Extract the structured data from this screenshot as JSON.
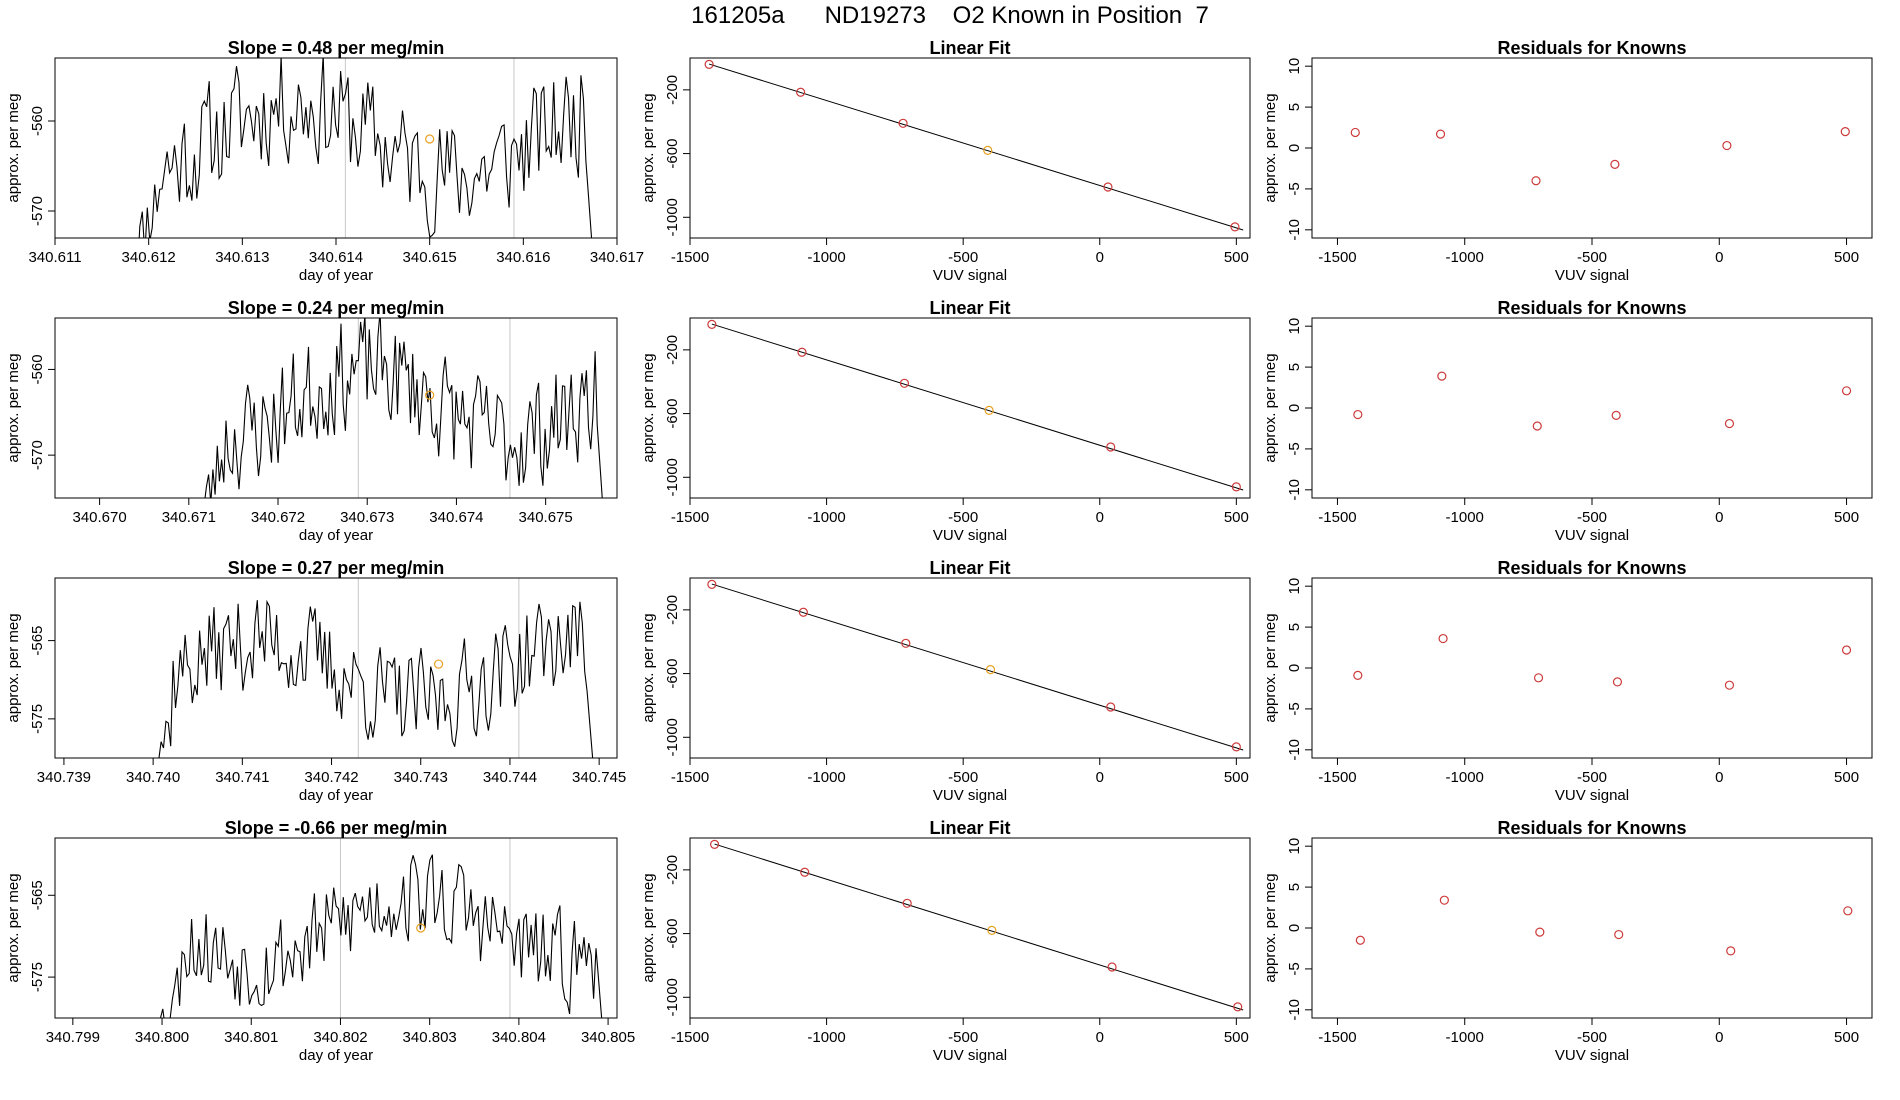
{
  "figure_title": "161205a      ND19273    O2 Known in Position  7",
  "colors": {
    "trace": "#000000",
    "marker_red": "#cd3a3a",
    "marker_orange": "#e8a020",
    "window_line": "#c8c8c8",
    "frame": "#000000"
  },
  "chart_data": [
    {
      "type": "line",
      "title": "Slope =  0.48  per meg/min",
      "xlabel": "day of year",
      "ylabel": "approx. per meg",
      "xlim": [
        340.611,
        340.617
      ],
      "ylim": [
        -573,
        -553
      ],
      "xticks": [
        "340.611",
        "340.612",
        "340.613",
        "340.614",
        "340.615",
        "340.616",
        "340.617"
      ],
      "yticks": [
        "-560",
        "-570"
      ],
      "ytick_values": [
        -560,
        -570
      ],
      "window_lines": [
        340.6141,
        340.6159
      ],
      "marker": {
        "x": 340.615,
        "y": -562
      },
      "series": [
        {
          "start_x": 340.6118,
          "end_x": 340.6168,
          "mean": -562,
          "amp": 6,
          "seed": 11
        }
      ]
    },
    {
      "type": "scatter",
      "title": "Linear Fit",
      "xlabel": "VUV signal",
      "ylabel": "approx. per meg",
      "xlim": [
        -1500,
        550
      ],
      "ylim": [
        -1130,
        0
      ],
      "xticks": [
        "-1500",
        "-1000",
        "-500",
        "0",
        "500"
      ],
      "xtick_values": [
        -1500,
        -1000,
        -500,
        0,
        500
      ],
      "yticks": [
        "-200",
        "-600",
        "-1000"
      ],
      "ytick_values": [
        -200,
        -600,
        -1000
      ],
      "points": [
        {
          "x": -1430,
          "y": -40,
          "c": "red"
        },
        {
          "x": -1095,
          "y": -215,
          "c": "red"
        },
        {
          "x": -720,
          "y": -410,
          "c": "red"
        },
        {
          "x": -410,
          "y": -580,
          "c": "orange"
        },
        {
          "x": 30,
          "y": -810,
          "c": "red"
        },
        {
          "x": 495,
          "y": -1060,
          "c": "red"
        }
      ],
      "fit": {
        "x": [
          -1430,
          525
        ],
        "y": [
          -38,
          -1080
        ]
      }
    },
    {
      "type": "scatter",
      "title": "Residuals for Knowns",
      "xlabel": "VUV signal",
      "ylabel": "approx. per meg",
      "xlim": [
        -1600,
        600
      ],
      "ylim": [
        -11,
        11
      ],
      "xticks": [
        "-1500",
        "-1000",
        "-500",
        "0",
        "500"
      ],
      "xtick_values": [
        -1500,
        -1000,
        -500,
        0,
        500
      ],
      "yticks": [
        "10",
        "5",
        "0",
        "-5",
        "-10"
      ],
      "ytick_values": [
        10,
        5,
        0,
        -5,
        -10
      ],
      "points": [
        {
          "x": -1430,
          "y": 1.9,
          "c": "red"
        },
        {
          "x": -1095,
          "y": 1.7,
          "c": "red"
        },
        {
          "x": -720,
          "y": -4.0,
          "c": "red"
        },
        {
          "x": -410,
          "y": -2.0,
          "c": "red"
        },
        {
          "x": 30,
          "y": 0.3,
          "c": "red"
        },
        {
          "x": 495,
          "y": 2.0,
          "c": "red"
        }
      ]
    },
    {
      "type": "line",
      "title": "Slope =  0.24  per meg/min",
      "xlabel": "day of year",
      "ylabel": "approx. per meg",
      "xlim": [
        340.6695,
        340.6758
      ],
      "ylim": [
        -575,
        -554
      ],
      "xticks": [
        "340.670",
        "340.671",
        "340.672",
        "340.673",
        "340.674",
        "340.675"
      ],
      "yticks": [
        "-560",
        "-570"
      ],
      "ytick_values": [
        -560,
        -570
      ],
      "window_lines": [
        340.6729,
        340.6746
      ],
      "marker": {
        "x": 340.6737,
        "y": -563
      },
      "series": [
        {
          "start_x": 340.6711,
          "end_x": 340.6757,
          "mean": -564,
          "amp": 6,
          "seed": 23
        }
      ]
    },
    {
      "type": "scatter",
      "title": "Linear Fit",
      "xlabel": "VUV signal",
      "ylabel": "approx. per meg",
      "xlim": [
        -1500,
        550
      ],
      "ylim": [
        -1130,
        0
      ],
      "xticks": [
        "-1500",
        "-1000",
        "-500",
        "0",
        "500"
      ],
      "xtick_values": [
        -1500,
        -1000,
        -500,
        0,
        500
      ],
      "yticks": [
        "-200",
        "-600",
        "-1000"
      ],
      "ytick_values": [
        -200,
        -600,
        -1000
      ],
      "points": [
        {
          "x": -1420,
          "y": -40,
          "c": "red"
        },
        {
          "x": -1090,
          "y": -215,
          "c": "red"
        },
        {
          "x": -715,
          "y": -410,
          "c": "red"
        },
        {
          "x": -405,
          "y": -580,
          "c": "orange"
        },
        {
          "x": 40,
          "y": -810,
          "c": "red"
        },
        {
          "x": 500,
          "y": -1060,
          "c": "red"
        }
      ],
      "fit": {
        "x": [
          -1420,
          525
        ],
        "y": [
          -38,
          -1080
        ]
      }
    },
    {
      "type": "scatter",
      "title": "Residuals for Knowns",
      "xlabel": "VUV signal",
      "ylabel": "approx. per meg",
      "xlim": [
        -1600,
        600
      ],
      "ylim": [
        -11,
        11
      ],
      "xticks": [
        "-1500",
        "-1000",
        "-500",
        "0",
        "500"
      ],
      "xtick_values": [
        -1500,
        -1000,
        -500,
        0,
        500
      ],
      "yticks": [
        "10",
        "5",
        "0",
        "-5",
        "-10"
      ],
      "ytick_values": [
        10,
        5,
        0,
        -5,
        -10
      ],
      "points": [
        {
          "x": -1420,
          "y": -0.8,
          "c": "red"
        },
        {
          "x": -1090,
          "y": 3.9,
          "c": "red"
        },
        {
          "x": -715,
          "y": -2.2,
          "c": "red"
        },
        {
          "x": -405,
          "y": -0.9,
          "c": "red"
        },
        {
          "x": 40,
          "y": -1.9,
          "c": "red"
        },
        {
          "x": 500,
          "y": 2.1,
          "c": "red"
        }
      ]
    },
    {
      "type": "line",
      "title": "Slope =  0.27  per meg/min",
      "xlabel": "day of year",
      "ylabel": "approx. per meg",
      "xlim": [
        340.7389,
        340.7452
      ],
      "ylim": [
        -580,
        -557
      ],
      "xticks": [
        "340.739",
        "340.740",
        "340.741",
        "340.742",
        "340.743",
        "340.744",
        "340.745"
      ],
      "yticks": [
        "-565",
        "-575"
      ],
      "ytick_values": [
        -565,
        -575
      ],
      "window_lines": [
        340.7423,
        340.7441
      ],
      "marker": {
        "x": 340.7432,
        "y": -568
      },
      "series": [
        {
          "start_x": 340.7399,
          "end_x": 340.745,
          "mean": -569,
          "amp": 6,
          "seed": 37
        }
      ]
    },
    {
      "type": "scatter",
      "title": "Linear Fit",
      "xlabel": "VUV signal",
      "ylabel": "approx. per meg",
      "xlim": [
        -1500,
        550
      ],
      "ylim": [
        -1130,
        0
      ],
      "xticks": [
        "-1500",
        "-1000",
        "-500",
        "0",
        "500"
      ],
      "xtick_values": [
        -1500,
        -1000,
        -500,
        0,
        500
      ],
      "yticks": [
        "-200",
        "-600",
        "-1000"
      ],
      "ytick_values": [
        -200,
        -600,
        -1000
      ],
      "points": [
        {
          "x": -1420,
          "y": -40,
          "c": "red"
        },
        {
          "x": -1085,
          "y": -215,
          "c": "red"
        },
        {
          "x": -710,
          "y": -410,
          "c": "red"
        },
        {
          "x": -400,
          "y": -575,
          "c": "orange"
        },
        {
          "x": 40,
          "y": -810,
          "c": "red"
        },
        {
          "x": 500,
          "y": -1060,
          "c": "red"
        }
      ],
      "fit": {
        "x": [
          -1420,
          525
        ],
        "y": [
          -38,
          -1080
        ]
      }
    },
    {
      "type": "scatter",
      "title": "Residuals for Knowns",
      "xlabel": "VUV signal",
      "ylabel": "approx. per meg",
      "xlim": [
        -1600,
        600
      ],
      "ylim": [
        -11,
        11
      ],
      "xticks": [
        "-1500",
        "-1000",
        "-500",
        "0",
        "500"
      ],
      "xtick_values": [
        -1500,
        -1000,
        -500,
        0,
        500
      ],
      "yticks": [
        "10",
        "5",
        "0",
        "-5",
        "-10"
      ],
      "ytick_values": [
        10,
        5,
        0,
        -5,
        -10
      ],
      "points": [
        {
          "x": -1420,
          "y": -0.9,
          "c": "red"
        },
        {
          "x": -1085,
          "y": 3.6,
          "c": "red"
        },
        {
          "x": -710,
          "y": -1.2,
          "c": "red"
        },
        {
          "x": -400,
          "y": -1.7,
          "c": "red"
        },
        {
          "x": 40,
          "y": -2.1,
          "c": "red"
        },
        {
          "x": 500,
          "y": 2.2,
          "c": "red"
        }
      ]
    },
    {
      "type": "line",
      "title": "Slope =  -0.66  per meg/min",
      "xlabel": "day of year",
      "ylabel": "approx. per meg",
      "xlim": [
        340.7988,
        340.8051
      ],
      "ylim": [
        -580,
        -558
      ],
      "xticks": [
        "340.799",
        "340.800",
        "340.801",
        "340.802",
        "340.803",
        "340.804",
        "340.805"
      ],
      "yticks": [
        "-565",
        "-575"
      ],
      "ytick_values": [
        -565,
        -575
      ],
      "window_lines": [
        340.802,
        340.8039
      ],
      "marker": {
        "x": 340.8029,
        "y": -569
      },
      "series": [
        {
          "start_x": 340.7999,
          "end_x": 340.805,
          "mean": -569,
          "amp": 5.5,
          "seed": 53
        }
      ]
    },
    {
      "type": "scatter",
      "title": "Linear Fit",
      "xlabel": "VUV signal",
      "ylabel": "approx. per meg",
      "xlim": [
        -1500,
        550
      ],
      "ylim": [
        -1130,
        0
      ],
      "xticks": [
        "-1500",
        "-1000",
        "-500",
        "0",
        "500"
      ],
      "xtick_values": [
        -1500,
        -1000,
        -500,
        0,
        500
      ],
      "yticks": [
        "-200",
        "-600",
        "-1000"
      ],
      "ytick_values": [
        -200,
        -600,
        -1000
      ],
      "points": [
        {
          "x": -1410,
          "y": -40,
          "c": "red"
        },
        {
          "x": -1080,
          "y": -215,
          "c": "red"
        },
        {
          "x": -705,
          "y": -410,
          "c": "red"
        },
        {
          "x": -395,
          "y": -580,
          "c": "orange"
        },
        {
          "x": 45,
          "y": -810,
          "c": "red"
        },
        {
          "x": 505,
          "y": -1060,
          "c": "red"
        }
      ],
      "fit": {
        "x": [
          -1410,
          525
        ],
        "y": [
          -38,
          -1080
        ]
      }
    },
    {
      "type": "scatter",
      "title": "Residuals for Knowns",
      "xlabel": "VUV signal",
      "ylabel": "approx. per meg",
      "xlim": [
        -1600,
        600
      ],
      "ylim": [
        -11,
        11
      ],
      "xticks": [
        "-1500",
        "-1000",
        "-500",
        "0",
        "500"
      ],
      "xtick_values": [
        -1500,
        -1000,
        -500,
        0,
        500
      ],
      "yticks": [
        "10",
        "5",
        "0",
        "-5",
        "-10"
      ],
      "ytick_values": [
        10,
        5,
        0,
        -5,
        -10
      ],
      "points": [
        {
          "x": -1410,
          "y": -1.5,
          "c": "red"
        },
        {
          "x": -1080,
          "y": 3.4,
          "c": "red"
        },
        {
          "x": -705,
          "y": -0.5,
          "c": "red"
        },
        {
          "x": -395,
          "y": -0.8,
          "c": "red"
        },
        {
          "x": 45,
          "y": -2.8,
          "c": "red"
        },
        {
          "x": 505,
          "y": 2.1,
          "c": "red"
        }
      ]
    }
  ]
}
